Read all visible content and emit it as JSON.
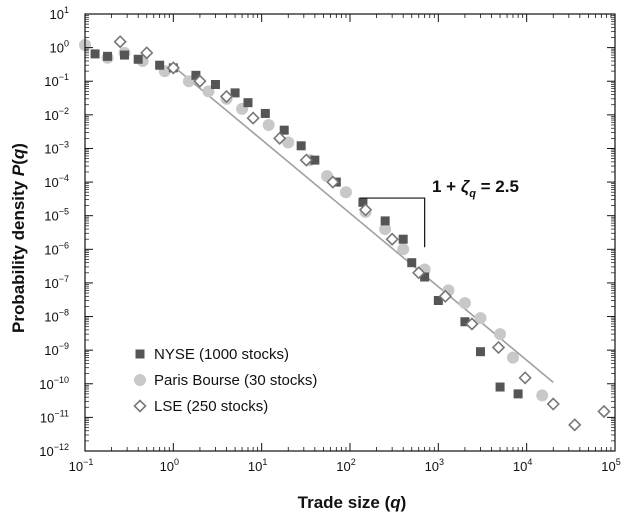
{
  "chart_data": {
    "type": "scatter",
    "title": "",
    "xlabel": "Trade size (q)",
    "ylabel": "Probability density P(q)",
    "x_scale": "log",
    "y_scale": "log",
    "xlim": [
      0.1,
      100000
    ],
    "ylim": [
      1e-12,
      10
    ],
    "x_ticks": [
      {
        "value": 0.1,
        "base": "10",
        "exp": "−1"
      },
      {
        "value": 1,
        "base": "10",
        "exp": "0"
      },
      {
        "value": 10,
        "base": "10",
        "exp": "1"
      },
      {
        "value": 100,
        "base": "10",
        "exp": "2"
      },
      {
        "value": 1000,
        "base": "10",
        "exp": "3"
      },
      {
        "value": 10000,
        "base": "10",
        "exp": "4"
      },
      {
        "value": 100000,
        "base": "10",
        "exp": "5"
      }
    ],
    "y_ticks": [
      {
        "value": 10,
        "base": "10",
        "exp": "1"
      },
      {
        "value": 1,
        "base": "10",
        "exp": "0"
      },
      {
        "value": 0.1,
        "base": "10",
        "exp": "−1"
      },
      {
        "value": 0.01,
        "base": "10",
        "exp": "−2"
      },
      {
        "value": 0.001,
        "base": "10",
        "exp": "−3"
      },
      {
        "value": 0.0001,
        "base": "10",
        "exp": "−4"
      },
      {
        "value": 1e-05,
        "base": "10",
        "exp": "−5"
      },
      {
        "value": 1e-06,
        "base": "10",
        "exp": "−6"
      },
      {
        "value": 1e-07,
        "base": "10",
        "exp": "−7"
      },
      {
        "value": 1e-08,
        "base": "10",
        "exp": "−8"
      },
      {
        "value": 1e-09,
        "base": "10",
        "exp": "−9"
      },
      {
        "value": 1e-10,
        "base": "10",
        "exp": "−10"
      },
      {
        "value": 1e-11,
        "base": "10",
        "exp": "−11"
      },
      {
        "value": 1e-12,
        "base": "10",
        "exp": "−12"
      }
    ],
    "grid": false,
    "legend_position": "bottom-left",
    "series": [
      {
        "name": "NYSE (1000 stocks)",
        "marker": "square",
        "color": "#555555",
        "points": [
          [
            0.13,
            0.65
          ],
          [
            0.18,
            0.55
          ],
          [
            0.28,
            0.6
          ],
          [
            0.4,
            0.45
          ],
          [
            0.7,
            0.3
          ],
          [
            1.0,
            0.25
          ],
          [
            1.8,
            0.15
          ],
          [
            3.0,
            0.08
          ],
          [
            5.0,
            0.045
          ],
          [
            7.0,
            0.023
          ],
          [
            11,
            0.011
          ],
          [
            18,
            0.0035
          ],
          [
            28,
            0.0012
          ],
          [
            40,
            0.00045
          ],
          [
            70,
            0.0001
          ],
          [
            140,
            2.5e-05
          ],
          [
            250,
            7e-06
          ],
          [
            400,
            2e-06
          ],
          [
            500,
            4e-07
          ],
          [
            700,
            1.5e-07
          ],
          [
            1000,
            3e-08
          ],
          [
            2000,
            7e-09
          ],
          [
            3000,
            9e-10
          ],
          [
            5000,
            8e-11
          ],
          [
            8000,
            5e-11
          ]
        ]
      },
      {
        "name": "Paris Bourse (30 stocks)",
        "marker": "circle",
        "color": "#c8c8c8",
        "points": [
          [
            0.1,
            1.2
          ],
          [
            0.18,
            0.5
          ],
          [
            0.28,
            0.7
          ],
          [
            0.45,
            0.4
          ],
          [
            0.8,
            0.2
          ],
          [
            1.5,
            0.1
          ],
          [
            2.5,
            0.05
          ],
          [
            4.0,
            0.03
          ],
          [
            6.0,
            0.015
          ],
          [
            12,
            0.005
          ],
          [
            20,
            0.0015
          ],
          [
            35,
            0.00045
          ],
          [
            55,
            0.00015
          ],
          [
            90,
            5e-05
          ],
          [
            150,
            1.3e-05
          ],
          [
            250,
            4e-06
          ],
          [
            400,
            1e-06
          ],
          [
            700,
            2.5e-07
          ],
          [
            1300,
            6e-08
          ],
          [
            2000,
            2.5e-08
          ],
          [
            3000,
            9e-09
          ],
          [
            5000,
            3e-09
          ],
          [
            7000,
            6e-10
          ],
          [
            15000,
            4.5e-11
          ]
        ]
      },
      {
        "name": "LSE (250 stocks)",
        "marker": "diamond",
        "color": "#777777",
        "points": [
          [
            0.25,
            1.5
          ],
          [
            0.5,
            0.7
          ],
          [
            1.0,
            0.25
          ],
          [
            2.0,
            0.1
          ],
          [
            4.0,
            0.035
          ],
          [
            8.0,
            0.008
          ],
          [
            16,
            0.002
          ],
          [
            32,
            0.00045
          ],
          [
            64,
            0.0001
          ],
          [
            150,
            1.5e-05
          ],
          [
            300,
            2e-06
          ],
          [
            600,
            2e-07
          ],
          [
            1200,
            4e-08
          ],
          [
            2400,
            6e-09
          ],
          [
            4800,
            1.2e-09
          ],
          [
            9600,
            1.5e-10
          ],
          [
            20000,
            2.5e-11
          ],
          [
            35000,
            6e-12
          ],
          [
            75000,
            1.5e-11
          ]
        ]
      }
    ],
    "fit_line": {
      "slope": -2.5,
      "color": "#a0a0a0",
      "points": [
        [
          1.0,
          0.28
        ],
        [
          20000,
          1.1e-10
        ]
      ]
    },
    "annotation": {
      "text_prefix": "1 + ",
      "zeta": "ζ",
      "subscript": "q",
      "text_suffix": " = 2.5",
      "bracket_x": [
        150,
        700
      ]
    }
  }
}
